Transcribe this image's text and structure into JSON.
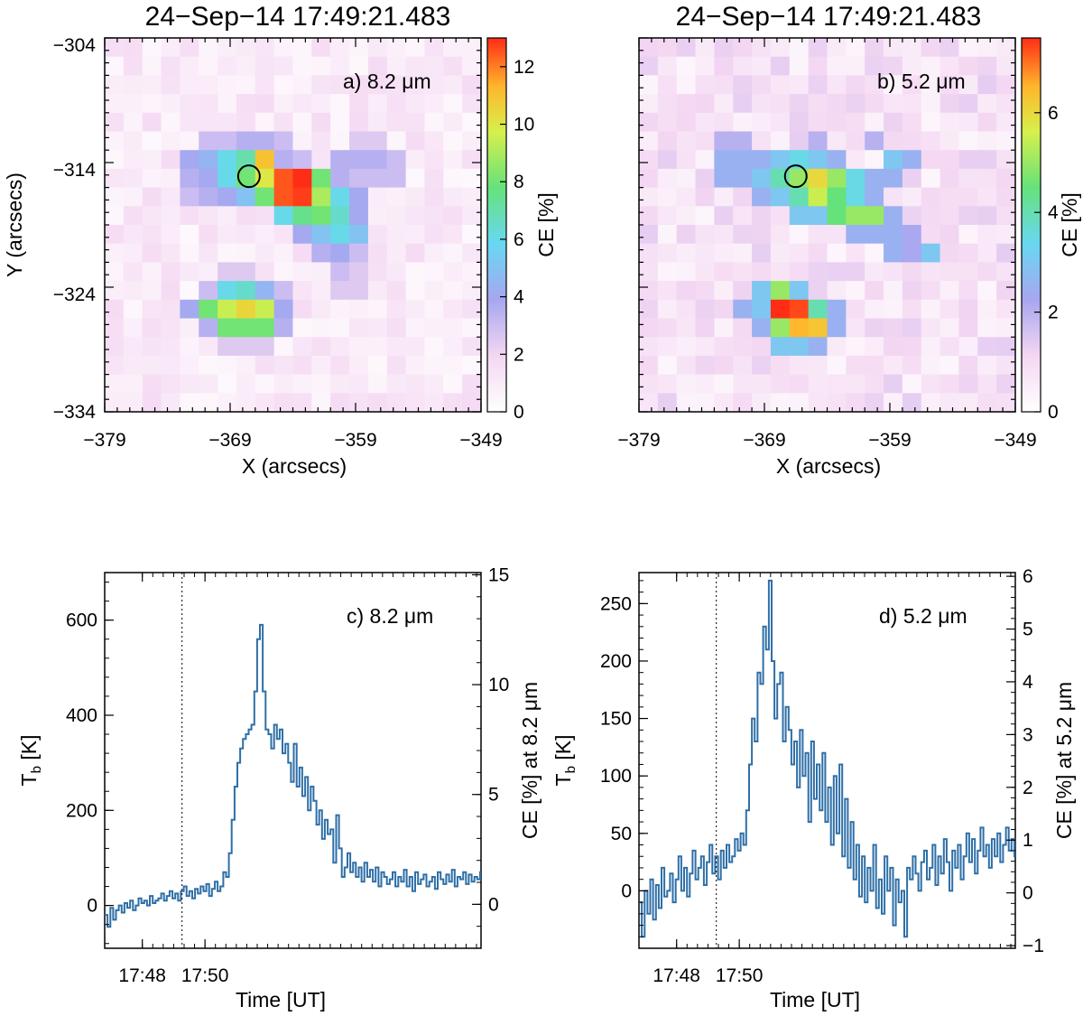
{
  "chart_data": [
    {
      "panel": "a",
      "type": "heatmap",
      "title": "24−Sep−14 17:49:21.483",
      "annotation": "a) 8.2 μm",
      "xlabel": "X (arcsecs)",
      "ylabel": "Y (arcsecs)",
      "xlim": [
        -379,
        -349
      ],
      "ylim": [
        -334,
        -304
      ],
      "x_ticks": [
        "−379",
        "−369",
        "−359",
        "−349"
      ],
      "y_ticks": [
        "−304",
        "−314",
        "−324",
        "−334"
      ],
      "grid_size": [
        20,
        20
      ],
      "colorbar": {
        "label": "CE [%]",
        "range": [
          0,
          13
        ],
        "ticks": [
          "0",
          "2",
          "4",
          "6",
          "8",
          "10",
          "12"
        ]
      },
      "marker": {
        "shape": "circle",
        "x": -367.5,
        "y": -315.1
      },
      "hot_cells": [
        {
          "col": 5,
          "row": 5,
          "v": 3
        },
        {
          "col": 6,
          "row": 5,
          "v": 3
        },
        {
          "col": 7,
          "row": 5,
          "v": 3.5
        },
        {
          "col": 8,
          "row": 5,
          "v": 3.5
        },
        {
          "col": 9,
          "row": 5,
          "v": 3
        },
        {
          "col": 4,
          "row": 6,
          "v": 4
        },
        {
          "col": 5,
          "row": 6,
          "v": 4.5
        },
        {
          "col": 6,
          "row": 6,
          "v": 6
        },
        {
          "col": 7,
          "row": 6,
          "v": 7
        },
        {
          "col": 8,
          "row": 6,
          "v": 11
        },
        {
          "col": 9,
          "row": 6,
          "v": 3.5
        },
        {
          "col": 10,
          "row": 6,
          "v": 3
        },
        {
          "col": 4,
          "row": 7,
          "v": 3.5
        },
        {
          "col": 5,
          "row": 7,
          "v": 4
        },
        {
          "col": 6,
          "row": 7,
          "v": 6
        },
        {
          "col": 7,
          "row": 7,
          "v": 8
        },
        {
          "col": 8,
          "row": 7,
          "v": 10
        },
        {
          "col": 9,
          "row": 7,
          "v": 12.5
        },
        {
          "col": 10,
          "row": 7,
          "v": 13
        },
        {
          "col": 11,
          "row": 7,
          "v": 8
        },
        {
          "col": 12,
          "row": 7,
          "v": 3.5
        },
        {
          "col": 4,
          "row": 8,
          "v": 3
        },
        {
          "col": 5,
          "row": 8,
          "v": 3.5
        },
        {
          "col": 6,
          "row": 8,
          "v": 4
        },
        {
          "col": 7,
          "row": 8,
          "v": 5
        },
        {
          "col": 8,
          "row": 8,
          "v": 8
        },
        {
          "col": 9,
          "row": 8,
          "v": 12.5
        },
        {
          "col": 10,
          "row": 8,
          "v": 12.8
        },
        {
          "col": 11,
          "row": 8,
          "v": 9
        },
        {
          "col": 12,
          "row": 8,
          "v": 6
        },
        {
          "col": 13,
          "row": 8,
          "v": 4
        },
        {
          "col": 9,
          "row": 9,
          "v": 6
        },
        {
          "col": 10,
          "row": 9,
          "v": 7.5
        },
        {
          "col": 11,
          "row": 9,
          "v": 8
        },
        {
          "col": 12,
          "row": 9,
          "v": 6.5
        },
        {
          "col": 13,
          "row": 9,
          "v": 4
        },
        {
          "col": 10,
          "row": 10,
          "v": 4
        },
        {
          "col": 11,
          "row": 10,
          "v": 5
        },
        {
          "col": 12,
          "row": 10,
          "v": 6
        },
        {
          "col": 13,
          "row": 10,
          "v": 5
        },
        {
          "col": 11,
          "row": 11,
          "v": 3.5
        },
        {
          "col": 12,
          "row": 11,
          "v": 4
        },
        {
          "col": 13,
          "row": 11,
          "v": 3
        },
        {
          "col": 12,
          "row": 12,
          "v": 3
        },
        {
          "col": 13,
          "row": 12,
          "v": 2.5
        },
        {
          "col": 12,
          "row": 13,
          "v": 2.5
        },
        {
          "col": 13,
          "row": 13,
          "v": 2.5
        },
        {
          "col": 12,
          "row": 6,
          "v": 3.5
        },
        {
          "col": 13,
          "row": 6,
          "v": 3.5
        },
        {
          "col": 14,
          "row": 6,
          "v": 3.5
        },
        {
          "col": 15,
          "row": 6,
          "v": 3
        },
        {
          "col": 13,
          "row": 5,
          "v": 2.5
        },
        {
          "col": 14,
          "row": 5,
          "v": 2.5
        },
        {
          "col": 13,
          "row": 7,
          "v": 3
        },
        {
          "col": 14,
          "row": 7,
          "v": 3
        },
        {
          "col": 15,
          "row": 7,
          "v": 3
        },
        {
          "col": 6,
          "row": 12,
          "v": 2.5
        },
        {
          "col": 7,
          "row": 12,
          "v": 2.5
        },
        {
          "col": 5,
          "row": 13,
          "v": 3
        },
        {
          "col": 6,
          "row": 13,
          "v": 6
        },
        {
          "col": 7,
          "row": 13,
          "v": 6.5
        },
        {
          "col": 8,
          "row": 13,
          "v": 4.5
        },
        {
          "col": 9,
          "row": 13,
          "v": 3
        },
        {
          "col": 4,
          "row": 14,
          "v": 4
        },
        {
          "col": 5,
          "row": 14,
          "v": 8
        },
        {
          "col": 6,
          "row": 14,
          "v": 9.5
        },
        {
          "col": 7,
          "row": 14,
          "v": 10.5
        },
        {
          "col": 8,
          "row": 14,
          "v": 9.5
        },
        {
          "col": 9,
          "row": 14,
          "v": 4
        },
        {
          "col": 5,
          "row": 15,
          "v": 3.5
        },
        {
          "col": 6,
          "row": 15,
          "v": 8
        },
        {
          "col": 7,
          "row": 15,
          "v": 8
        },
        {
          "col": 8,
          "row": 15,
          "v": 8
        },
        {
          "col": 9,
          "row": 15,
          "v": 3.5
        },
        {
          "col": 6,
          "row": 16,
          "v": 2.5
        },
        {
          "col": 7,
          "row": 16,
          "v": 2.5
        },
        {
          "col": 8,
          "row": 16,
          "v": 2.5
        }
      ],
      "background_level": 1.3
    },
    {
      "panel": "b",
      "type": "heatmap",
      "title": "24−Sep−14 17:49:21.483",
      "annotation": "b) 5.2 μm",
      "xlabel": "X (arcsecs)",
      "xlim": [
        -379,
        -349
      ],
      "ylim": [
        -334,
        -304
      ],
      "x_ticks": [
        "−379",
        "−369",
        "−359",
        "−349"
      ],
      "grid_size": [
        20,
        20
      ],
      "colorbar": {
        "label": "CE [%]",
        "range": [
          0,
          7.5
        ],
        "ticks": [
          "0",
          "2",
          "4",
          "6"
        ]
      },
      "marker": {
        "shape": "circle",
        "x": -366.5,
        "y": -315.1
      },
      "hot_cells": [
        {
          "col": 4,
          "row": 5,
          "v": 2
        },
        {
          "col": 5,
          "row": 5,
          "v": 2
        },
        {
          "col": 9,
          "row": 5,
          "v": 2
        },
        {
          "col": 12,
          "row": 5,
          "v": 2
        },
        {
          "col": 4,
          "row": 6,
          "v": 2.5
        },
        {
          "col": 5,
          "row": 6,
          "v": 2.5
        },
        {
          "col": 6,
          "row": 6,
          "v": 2.5
        },
        {
          "col": 7,
          "row": 6,
          "v": 3
        },
        {
          "col": 8,
          "row": 6,
          "v": 3.5
        },
        {
          "col": 9,
          "row": 6,
          "v": 3
        },
        {
          "col": 10,
          "row": 6,
          "v": 2.5
        },
        {
          "col": 13,
          "row": 6,
          "v": 3
        },
        {
          "col": 14,
          "row": 6,
          "v": 2.5
        },
        {
          "col": 4,
          "row": 7,
          "v": 2.5
        },
        {
          "col": 5,
          "row": 7,
          "v": 2.5
        },
        {
          "col": 6,
          "row": 7,
          "v": 3
        },
        {
          "col": 7,
          "row": 7,
          "v": 4
        },
        {
          "col": 8,
          "row": 7,
          "v": 5
        },
        {
          "col": 9,
          "row": 7,
          "v": 6
        },
        {
          "col": 10,
          "row": 7,
          "v": 5
        },
        {
          "col": 11,
          "row": 7,
          "v": 3.5
        },
        {
          "col": 12,
          "row": 7,
          "v": 2.5
        },
        {
          "col": 13,
          "row": 7,
          "v": 2.5
        },
        {
          "col": 6,
          "row": 8,
          "v": 2.5
        },
        {
          "col": 7,
          "row": 8,
          "v": 3
        },
        {
          "col": 8,
          "row": 8,
          "v": 4
        },
        {
          "col": 9,
          "row": 8,
          "v": 5.5
        },
        {
          "col": 10,
          "row": 8,
          "v": 4.5
        },
        {
          "col": 11,
          "row": 8,
          "v": 3.5
        },
        {
          "col": 12,
          "row": 8,
          "v": 2.5
        },
        {
          "col": 8,
          "row": 9,
          "v": 3
        },
        {
          "col": 9,
          "row": 9,
          "v": 3
        },
        {
          "col": 10,
          "row": 9,
          "v": 4.5
        },
        {
          "col": 11,
          "row": 9,
          "v": 5
        },
        {
          "col": 12,
          "row": 9,
          "v": 5
        },
        {
          "col": 13,
          "row": 9,
          "v": 2.5
        },
        {
          "col": 11,
          "row": 10,
          "v": 2.5
        },
        {
          "col": 12,
          "row": 10,
          "v": 2.5
        },
        {
          "col": 13,
          "row": 10,
          "v": 2.5
        },
        {
          "col": 14,
          "row": 10,
          "v": 2.2
        },
        {
          "col": 13,
          "row": 11,
          "v": 2.5
        },
        {
          "col": 14,
          "row": 11,
          "v": 2.2
        },
        {
          "col": 15,
          "row": 11,
          "v": 3
        },
        {
          "col": 6,
          "row": 13,
          "v": 3
        },
        {
          "col": 7,
          "row": 13,
          "v": 5
        },
        {
          "col": 8,
          "row": 13,
          "v": 3
        },
        {
          "col": 5,
          "row": 14,
          "v": 2.5
        },
        {
          "col": 6,
          "row": 14,
          "v": 3
        },
        {
          "col": 7,
          "row": 14,
          "v": 7.5
        },
        {
          "col": 8,
          "row": 14,
          "v": 7.3
        },
        {
          "col": 9,
          "row": 14,
          "v": 4
        },
        {
          "col": 10,
          "row": 14,
          "v": 2.5
        },
        {
          "col": 6,
          "row": 15,
          "v": 2.5
        },
        {
          "col": 7,
          "row": 15,
          "v": 5
        },
        {
          "col": 8,
          "row": 15,
          "v": 6.5
        },
        {
          "col": 9,
          "row": 15,
          "v": 6.3
        },
        {
          "col": 10,
          "row": 15,
          "v": 2.5
        },
        {
          "col": 7,
          "row": 16,
          "v": 3
        },
        {
          "col": 8,
          "row": 16,
          "v": 3
        },
        {
          "col": 9,
          "row": 16,
          "v": 2.5
        }
      ],
      "background_level": 1.0
    },
    {
      "panel": "c",
      "type": "line",
      "annotation": "c) 8.2 μm",
      "xlabel": "Time [UT]",
      "ylabel": "Tₙ [K]",
      "ylabel_main": "T",
      "ylabel_sub": "b",
      "ylabel_unit": " [K]",
      "ylabel_right": "CE [%] at 8.2 μm",
      "xlim": [
        17.78,
        17.98
      ],
      "ylim": [
        -90,
        700
      ],
      "x_ticks": [
        {
          "label": "17:48",
          "value": 17.8
        },
        {
          "label": "17:50",
          "value": 17.8333
        }
      ],
      "y_ticks": [
        "0",
        "200",
        "400",
        "600"
      ],
      "y_tick_values": [
        0,
        200,
        400,
        600
      ],
      "right_ticks": [
        "0",
        "5",
        "10",
        "15"
      ],
      "right_tick_values": [
        0,
        5,
        10,
        15
      ],
      "right_ylim": [
        -2,
        15.1
      ],
      "vline_time": 17.8211,
      "series": [
        {
          "values": [
            -20,
            -45,
            -5,
            -30,
            -10,
            0,
            -15,
            5,
            -5,
            10,
            -10,
            0,
            15,
            5,
            10,
            0,
            20,
            5,
            10,
            15,
            25,
            10,
            20,
            30,
            15,
            25,
            10,
            30,
            40,
            20,
            30,
            15,
            35,
            25,
            40,
            30,
            45,
            20,
            35,
            50,
            30,
            40,
            70,
            60,
            110,
            180,
            250,
            300,
            330,
            350,
            360,
            370,
            380,
            450,
            560,
            590,
            450,
            370,
            360,
            330,
            380,
            350,
            370,
            320,
            340,
            300,
            260,
            340,
            250,
            290,
            230,
            270,
            200,
            250,
            220,
            170,
            200,
            140,
            180,
            150,
            160,
            90,
            190,
            120,
            60,
            80,
            110,
            70,
            90,
            60,
            80,
            50,
            90,
            60,
            75,
            50,
            80,
            40,
            70,
            60,
            45,
            55,
            70,
            40,
            60,
            50,
            75,
            40,
            60,
            30,
            70,
            45,
            55,
            65,
            40,
            50,
            60,
            35,
            70,
            55,
            45,
            65,
            50,
            75,
            40,
            60,
            55,
            70,
            45,
            65,
            50,
            60,
            55,
            70,
            50,
            65,
            55,
            60,
            70,
            50
          ],
          "dt": 0.0015
        }
      ]
    },
    {
      "panel": "d",
      "type": "line",
      "annotation": "d) 5.2 μm",
      "xlabel": "Time [UT]",
      "ylabel_main": "T",
      "ylabel_sub": "b",
      "ylabel_unit": " [K]",
      "ylabel_right": "CE [%] at 5.2 μm",
      "xlim": [
        17.78,
        17.98
      ],
      "ylim": [
        -50,
        277
      ],
      "x_ticks": [
        {
          "label": "17:48",
          "value": 17.8
        },
        {
          "label": "17:50",
          "value": 17.8333
        }
      ],
      "y_ticks": [
        "0",
        "50",
        "100",
        "150",
        "200",
        "250"
      ],
      "y_tick_values": [
        0,
        50,
        100,
        150,
        200,
        250
      ],
      "right_ticks": [
        "−1",
        "0",
        "1",
        "2",
        "3",
        "4",
        "5",
        "6"
      ],
      "right_tick_values": [
        -1,
        0,
        1,
        2,
        3,
        4,
        5,
        6
      ],
      "right_ylim": [
        -1.05,
        6.07
      ],
      "vline_time": 17.8211,
      "series": [
        {
          "values": [
            -10,
            -40,
            0,
            -20,
            10,
            -25,
            5,
            -15,
            20,
            -5,
            0,
            15,
            -10,
            10,
            30,
            0,
            20,
            -5,
            15,
            35,
            10,
            20,
            30,
            5,
            25,
            40,
            15,
            30,
            10,
            35,
            20,
            40,
            25,
            30,
            45,
            35,
            50,
            40,
            70,
            110,
            150,
            130,
            190,
            180,
            230,
            210,
            270,
            200,
            150,
            180,
            190,
            130,
            160,
            140,
            110,
            130,
            90,
            140,
            100,
            120,
            60,
            130,
            80,
            110,
            70,
            120,
            60,
            90,
            40,
            100,
            50,
            110,
            30,
            80,
            20,
            60,
            10,
            40,
            -5,
            30,
            -10,
            20,
            0,
            40,
            -15,
            10,
            -20,
            30,
            0,
            20,
            -30,
            10,
            -10,
            0,
            -40,
            20,
            10,
            30,
            15,
            0,
            25,
            35,
            10,
            20,
            40,
            5,
            30,
            15,
            45,
            25,
            0,
            35,
            20,
            40,
            10,
            30,
            50,
            25,
            45,
            15,
            35,
            55,
            30,
            40,
            20,
            45,
            30,
            50,
            25,
            40,
            55,
            35,
            45,
            30,
            50,
            40
          ],
          "dt": 0.0015
        }
      ]
    }
  ]
}
